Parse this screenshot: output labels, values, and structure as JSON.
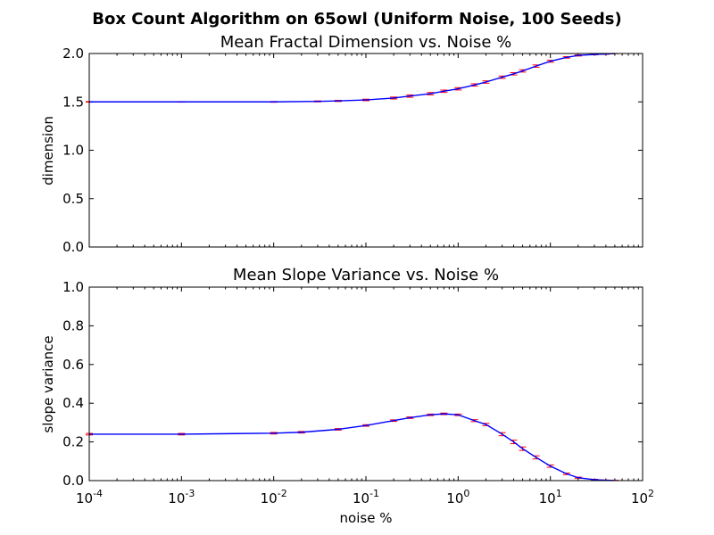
{
  "figure_title": "Box Count Algorithm on 65owl (Uniform Noise, 100 Seeds)",
  "colors": {
    "mean_line": "#0000ff",
    "error_bars": "#ff0000",
    "axes": "#000000"
  },
  "chart_data": [
    {
      "type": "line",
      "title": "Mean Fractal Dimension vs. Noise %",
      "xlabel": "",
      "ylabel": "dimension",
      "x_scale": "log",
      "xlim": [
        0.0001,
        100
      ],
      "ylim": [
        0.0,
        2.0
      ],
      "x_ticks": [
        {
          "base": "10",
          "exp": "-4"
        },
        {
          "base": "10",
          "exp": "-3"
        },
        {
          "base": "10",
          "exp": "-2"
        },
        {
          "base": "10",
          "exp": "-1"
        },
        {
          "base": "10",
          "exp": "0"
        },
        {
          "base": "10",
          "exp": "1"
        },
        {
          "base": "10",
          "exp": "2"
        }
      ],
      "x_ticklabels_visible": false,
      "y_ticks": [
        "0.0",
        "0.5",
        "1.0",
        "1.5",
        "2.0"
      ],
      "series": [
        {
          "x": [
            0.0001,
            0.001,
            0.01,
            0.03,
            0.05,
            0.1,
            0.2,
            0.3,
            0.5,
            0.7,
            1.0,
            1.5,
            2,
            3,
            4,
            5,
            7,
            10,
            15,
            20,
            30,
            40,
            50
          ],
          "y": [
            1.5,
            1.5,
            1.5,
            1.505,
            1.51,
            1.52,
            1.54,
            1.56,
            1.585,
            1.61,
            1.635,
            1.675,
            1.705,
            1.755,
            1.79,
            1.82,
            1.87,
            1.92,
            1.96,
            1.98,
            1.99,
            1.995,
            2.0
          ],
          "err": [
            0.003,
            0.003,
            0.004,
            0.005,
            0.006,
            0.008,
            0.01,
            0.012,
            0.012,
            0.012,
            0.012,
            0.012,
            0.012,
            0.012,
            0.012,
            0.012,
            0.012,
            0.01,
            0.008,
            0.006,
            0.004,
            0.003,
            0.002
          ]
        }
      ],
      "grid": false
    },
    {
      "type": "line",
      "title": "Mean Slope Variance vs. Noise %",
      "xlabel": "noise %",
      "ylabel": "slope variance",
      "x_scale": "log",
      "xlim": [
        0.0001,
        100
      ],
      "ylim": [
        0.0,
        1.0
      ],
      "x_ticks": [
        {
          "base": "10",
          "exp": "-4"
        },
        {
          "base": "10",
          "exp": "-3"
        },
        {
          "base": "10",
          "exp": "-2"
        },
        {
          "base": "10",
          "exp": "-1"
        },
        {
          "base": "10",
          "exp": "0"
        },
        {
          "base": "10",
          "exp": "1"
        },
        {
          "base": "10",
          "exp": "2"
        }
      ],
      "x_ticklabels_visible": true,
      "y_ticks": [
        "0.0",
        "0.2",
        "0.4",
        "0.6",
        "0.8",
        "1.0"
      ],
      "series": [
        {
          "x": [
            0.0001,
            0.001,
            0.01,
            0.02,
            0.05,
            0.1,
            0.2,
            0.3,
            0.5,
            0.7,
            1.0,
            1.5,
            2,
            3,
            4,
            5,
            7,
            10,
            15,
            20,
            30,
            40,
            50
          ],
          "y": [
            0.24,
            0.24,
            0.245,
            0.25,
            0.265,
            0.285,
            0.31,
            0.325,
            0.34,
            0.345,
            0.34,
            0.31,
            0.29,
            0.24,
            0.2,
            0.165,
            0.12,
            0.075,
            0.035,
            0.015,
            0.005,
            0.002,
            0.001
          ],
          "err": [
            0.004,
            0.004,
            0.004,
            0.004,
            0.004,
            0.004,
            0.004,
            0.004,
            0.004,
            0.004,
            0.004,
            0.005,
            0.006,
            0.008,
            0.009,
            0.009,
            0.008,
            0.006,
            0.004,
            0.003,
            0.002,
            0.001,
            0.001
          ]
        }
      ],
      "grid": false
    }
  ]
}
